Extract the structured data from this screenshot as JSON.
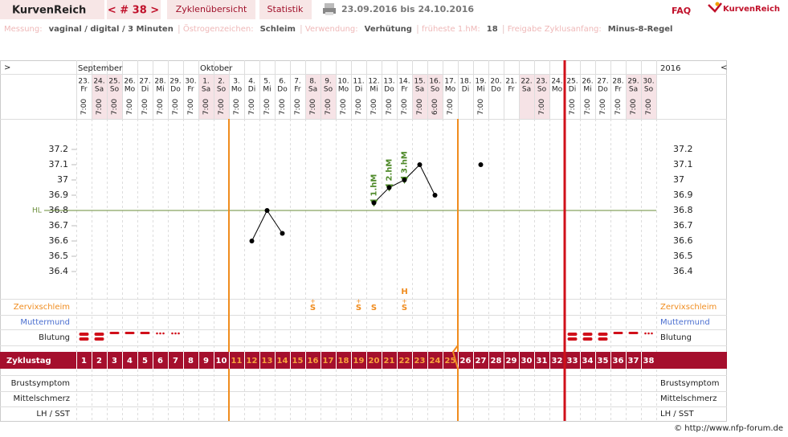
{
  "header": {
    "logo": "KurvenReich",
    "cycle": "< # 38 >",
    "tabs": [
      "Zyklenübersicht",
      "Statistik"
    ],
    "range": "23.09.2016 bis 24.10.2016",
    "faq": "FAQ",
    "brand": "KurvenReich"
  },
  "info": [
    [
      "Messung:",
      "vaginal / digital / 3 Minuten"
    ],
    [
      "Östrogenzeichen:",
      "Schleim"
    ],
    [
      "Verwendung:",
      "Verhütung"
    ],
    [
      "früheste 1.hM:",
      "18"
    ],
    [
      "Freigabe Zyklusanfang:",
      "Minus-8-Regel"
    ]
  ],
  "chart_data": {
    "type": "line",
    "nav_prev": ">",
    "nav_next": "<",
    "year": "2016",
    "months": [
      "September",
      "Oktober"
    ],
    "dates": [
      "23.",
      "24.",
      "25.",
      "26.",
      "27.",
      "28.",
      "29.",
      "30.",
      "1.",
      "2.",
      "3.",
      "4.",
      "5.",
      "6.",
      "7.",
      "8.",
      "9.",
      "10.",
      "11.",
      "12.",
      "13.",
      "14.",
      "15.",
      "16.",
      "17.",
      "18.",
      "19.",
      "20.",
      "21.",
      "22.",
      "23.",
      "24.",
      "25.",
      "26.",
      "27.",
      "28.",
      "29.",
      "30."
    ],
    "weekdays": [
      "Fr",
      "Sa",
      "So",
      "Mo",
      "Di",
      "Mi",
      "Do",
      "Fr",
      "Sa",
      "So",
      "Mo",
      "Di",
      "Mi",
      "Do",
      "Fr",
      "Sa",
      "So",
      "Mo",
      "Di",
      "Mi",
      "Do",
      "Fr",
      "Sa",
      "So",
      "Mo",
      "Di",
      "Mi",
      "Do",
      "Fr",
      "Sa",
      "So",
      "Mo",
      "Di",
      "Mi",
      "Do",
      "Fr",
      "Sa",
      "So"
    ],
    "times": [
      "7:00",
      "7:00",
      "7:00",
      "7:00",
      "7:00",
      "7:00",
      "7:00",
      "7:00",
      "7:00",
      "7:00",
      "7:00",
      "7:00",
      "7:00",
      "7:00",
      "7:00",
      "7:00",
      "7:00",
      "7:00",
      "7:00",
      "7:00",
      "7:00",
      "7:00",
      "7:00",
      "6:00",
      "7:00",
      null,
      "7:00",
      null,
      null,
      null,
      "7:00",
      null,
      "7:00",
      "7:00",
      "7:00",
      "7:00",
      "7:00",
      "7:00"
    ],
    "categories": [
      1,
      2,
      3,
      4,
      5,
      6,
      7,
      8,
      9,
      10,
      11,
      12,
      13,
      14,
      15,
      16,
      17,
      18,
      19,
      20,
      21,
      22,
      23,
      24,
      25,
      26,
      27,
      28,
      29,
      30,
      31,
      32,
      33,
      34,
      35,
      36,
      37,
      38
    ],
    "values": [
      null,
      null,
      null,
      null,
      null,
      null,
      null,
      null,
      null,
      null,
      null,
      36.6,
      36.8,
      36.65,
      null,
      null,
      null,
      null,
      null,
      36.85,
      36.95,
      37.0,
      37.1,
      36.9,
      null,
      null,
      37.1,
      null,
      null,
      null,
      null,
      null,
      null,
      null,
      null,
      null,
      null,
      null
    ],
    "color": "#000000",
    "ylim": [
      36.2,
      37.4
    ],
    "yticks": [
      36.4,
      36.5,
      36.6,
      36.7,
      36.8,
      36.9,
      37,
      37.1,
      37.2
    ],
    "hl": {
      "label": "HL",
      "value": 36.8,
      "color": "#6b8e3a"
    },
    "hm_labels": [
      "1.hM",
      "2.hM",
      "3.hM"
    ],
    "hm_days": [
      20,
      21,
      22
    ],
    "phase_lines": [
      10,
      25
    ],
    "current_line": 32,
    "rows": [
      "Zervixschleim",
      "Muttermund",
      "Blutung"
    ],
    "zyklustag": "Zyklustag",
    "lower_rows": [
      "Brustsymptom",
      "Mittelschmerz",
      "LH / SST"
    ],
    "zervix": [
      {
        "day": 16,
        "sup": "+",
        "sym": "S"
      },
      {
        "day": 19,
        "sup": "+",
        "sym": "S"
      },
      {
        "day": 20,
        "sym": "S"
      },
      {
        "day": 22,
        "top": "H",
        "sup": "+",
        "sym": "S"
      }
    ],
    "copyright": "© http://www.nfp-forum.de"
  }
}
